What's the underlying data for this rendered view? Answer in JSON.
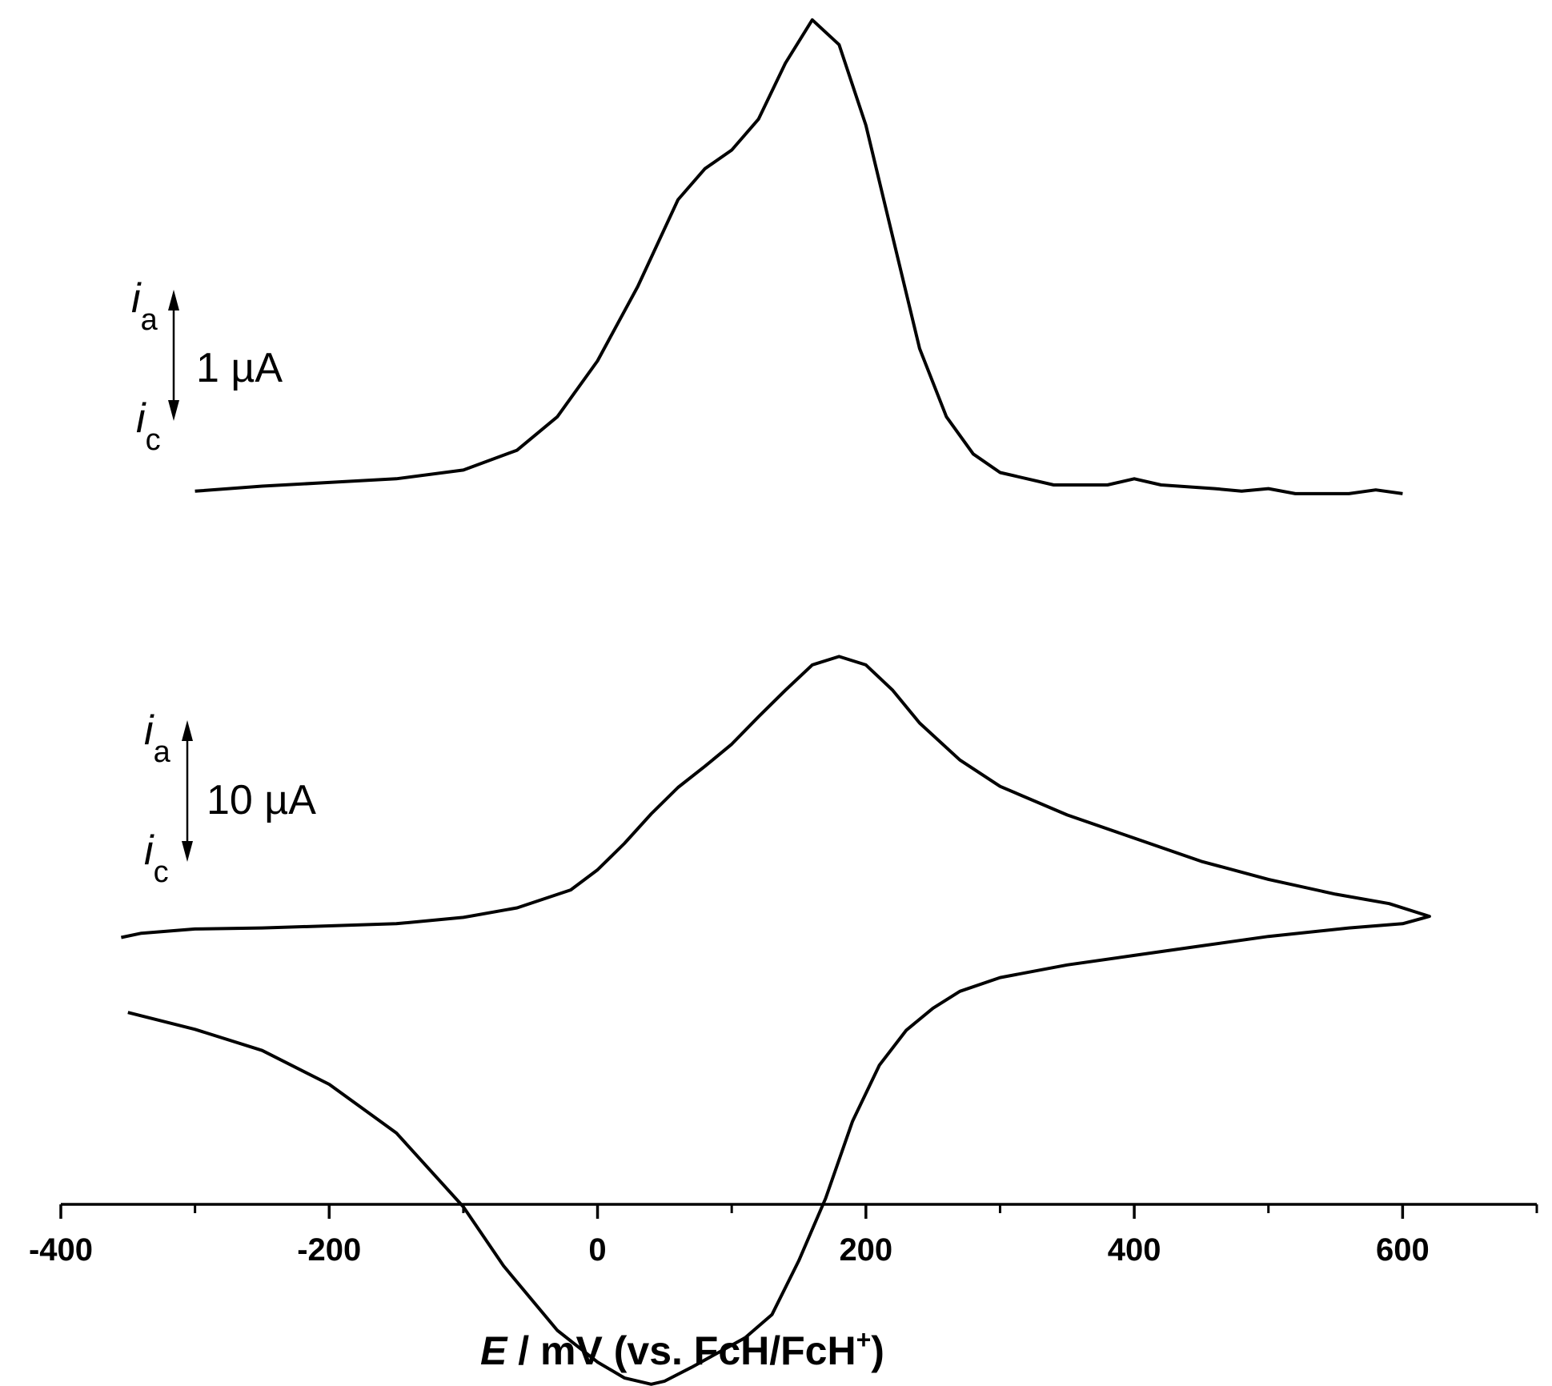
{
  "chart_data": [
    {
      "type": "line",
      "panel": "top",
      "x": [
        -300,
        -250,
        -200,
        -150,
        -100,
        -60,
        -30,
        0,
        30,
        60,
        80,
        100,
        120,
        140,
        160,
        180,
        200,
        220,
        240,
        260,
        280,
        300,
        340,
        380,
        400,
        420,
        460,
        480,
        500,
        520,
        560,
        580,
        600
      ],
      "y": [
        -0.05,
        -0.01,
        0.02,
        0.05,
        0.12,
        0.28,
        0.55,
        1.0,
        1.6,
        2.3,
        2.55,
        2.7,
        2.95,
        3.4,
        3.75,
        3.55,
        2.9,
        2.0,
        1.1,
        0.55,
        0.25,
        0.1,
        0.0,
        0.0,
        0.05,
        0.0,
        -0.03,
        -0.05,
        -0.03,
        -0.07,
        -0.07,
        -0.04,
        -0.07
      ],
      "y_unit": "µA"
    },
    {
      "type": "line",
      "panel": "bottom",
      "x": [
        -355,
        -340,
        -300,
        -250,
        -200,
        -150,
        -100,
        -60,
        -20,
        0,
        20,
        40,
        60,
        80,
        100,
        120,
        140,
        160,
        180,
        200,
        220,
        240,
        270,
        300,
        350,
        400,
        450,
        500,
        550,
        590,
        620,
        600,
        560,
        500,
        450,
        400,
        350,
        300,
        270,
        250,
        230,
        210,
        190,
        170,
        150,
        130,
        110,
        90,
        70,
        50,
        40,
        20,
        0,
        -30,
        -70,
        -100,
        -150,
        -200,
        -250,
        -300,
        -350
      ],
      "y": [
        1.1,
        1.5,
        1.9,
        2.0,
        2.2,
        2.4,
        3.0,
        3.9,
        5.6,
        7.5,
        10.0,
        12.8,
        15.3,
        17.3,
        19.4,
        22.0,
        24.5,
        26.9,
        27.7,
        26.9,
        24.5,
        21.4,
        17.9,
        15.4,
        12.7,
        10.5,
        8.3,
        6.6,
        5.2,
        4.3,
        3.1,
        2.4,
        2.0,
        1.2,
        0.3,
        -0.6,
        -1.5,
        -2.7,
        -4.0,
        -5.6,
        -7.7,
        -11.0,
        -16.3,
        -23.6,
        -29.5,
        -34.6,
        -36.8,
        -38.2,
        -39.6,
        -40.9,
        -41.2,
        -40.6,
        -39.1,
        -36.1,
        -30.0,
        -24.4,
        -17.4,
        -12.8,
        -9.6,
        -7.6,
        -6.0
      ],
      "y_unit": "µA"
    }
  ],
  "axis": {
    "xlim": [
      -400,
      700
    ],
    "major_ticks": [
      -400,
      -200,
      0,
      200,
      400,
      600
    ],
    "minor_ticks": [
      -300,
      -100,
      100,
      300,
      500,
      700
    ],
    "tick_labels": [
      "-400",
      "-200",
      "0",
      "200",
      "400",
      "600"
    ],
    "xlabel": {
      "symbol": "E",
      "rest": " / mV (vs. FcH/FcH",
      "sup": "+",
      "close": ")"
    }
  },
  "scale_bars": {
    "top": {
      "label": "1 µA",
      "i_anodic": "i",
      "anodic_sub": "a",
      "i_cathodic": "i",
      "cathodic_sub": "c"
    },
    "bottom": {
      "label": "10 µA",
      "i_anodic": "i",
      "anodic_sub": "a",
      "i_cathodic": "i",
      "cathodic_sub": "c"
    }
  },
  "colors": {
    "line": "#000000",
    "background": "#ffffff"
  }
}
